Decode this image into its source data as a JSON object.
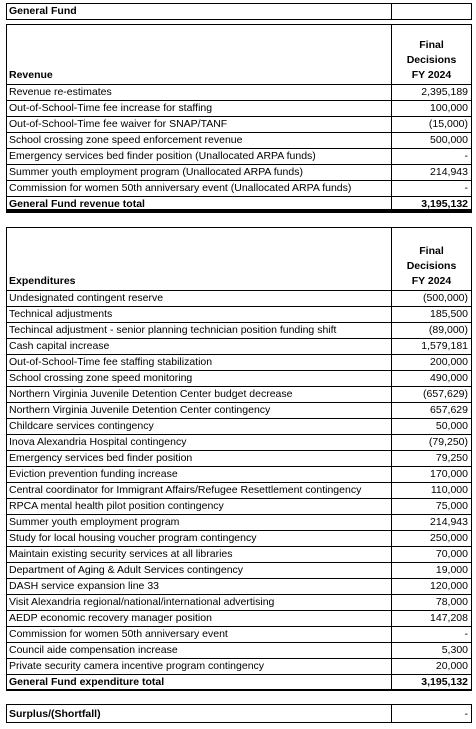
{
  "title": "General Fund",
  "decision_header": [
    "Final",
    "Decisions",
    "FY 2024"
  ],
  "revenue": {
    "label": "Revenue",
    "rows": [
      {
        "item": "Revenue re-estimates",
        "value": "2,395,189"
      },
      {
        "item": "Out-of-School-Time fee increase for staffing",
        "value": "100,000"
      },
      {
        "item": "Out-of-School-Time fee waiver for SNAP/TANF",
        "value": "(15,000)"
      },
      {
        "item": "School crossing zone speed enforcement revenue",
        "value": "500,000"
      },
      {
        "item": "Emergency services bed finder position (Unallocated ARPA funds)",
        "value": "-"
      },
      {
        "item": "Summer youth employment program (Unallocated ARPA funds)",
        "value": "214,943"
      },
      {
        "item": "Commission for women 50th anniversary event (Unallocated ARPA funds)",
        "value": "-"
      }
    ],
    "total_label": "General Fund revenue total",
    "total_value": "3,195,132"
  },
  "expenditures": {
    "label": "Expenditures",
    "rows": [
      {
        "item": "Undesignated contingent reserve",
        "value": "(500,000)"
      },
      {
        "item": "Technical adjustments",
        "value": "185,500"
      },
      {
        "item": "Techincal adjustment - senior planning technician position funding shift",
        "value": "(89,000)"
      },
      {
        "item": "Cash capital increase",
        "value": "1,579,181"
      },
      {
        "item": "Out-of-School-Time fee staffing stabilization",
        "value": "200,000"
      },
      {
        "item": "School crossing zone speed monitoring",
        "value": "490,000"
      },
      {
        "item": "Northern Virginia Juvenile Detention Center budget decrease",
        "value": "(657,629)"
      },
      {
        "item": "Northern Virginia Juvenile Detention Center contingency",
        "value": "657,629"
      },
      {
        "item": "Childcare services contingency",
        "value": "50,000"
      },
      {
        "item": "Inova Alexandria Hospital contingency",
        "value": "(79,250)"
      },
      {
        "item": "Emergency services bed finder position",
        "value": "79,250"
      },
      {
        "item": "Eviction prevention funding increase",
        "value": "170,000"
      },
      {
        "item": "Central coordinator for Immigrant Affairs/Refugee Resettlement contingency",
        "value": "110,000"
      },
      {
        "item": "RPCA mental health pilot position contingency",
        "value": "75,000"
      },
      {
        "item": "Summer youth employment program",
        "value": "214,943"
      },
      {
        "item": "Study for local housing voucher program contingency",
        "value": "250,000"
      },
      {
        "item": "Maintain existing security services at all libraries",
        "value": "70,000"
      },
      {
        "item": "Department of Aging & Adult Services contingency",
        "value": "19,000"
      },
      {
        "item": "DASH service expansion line 33",
        "value": "120,000"
      },
      {
        "item": "Visit Alexandria regional/national/international advertising",
        "value": "78,000"
      },
      {
        "item": "AEDP economic recovery manager position",
        "value": "147,208"
      },
      {
        "item": "Commission for women 50th anniversary event",
        "value": "-"
      },
      {
        "item": "Council aide compensation increase",
        "value": "5,300"
      },
      {
        "item": "Private security camera incentive program contingency",
        "value": "20,000"
      }
    ],
    "total_label": "General Fund expenditure total",
    "total_value": "3,195,132"
  },
  "surplus": {
    "label": "Surplus/(Shortfall)",
    "value": "-"
  }
}
